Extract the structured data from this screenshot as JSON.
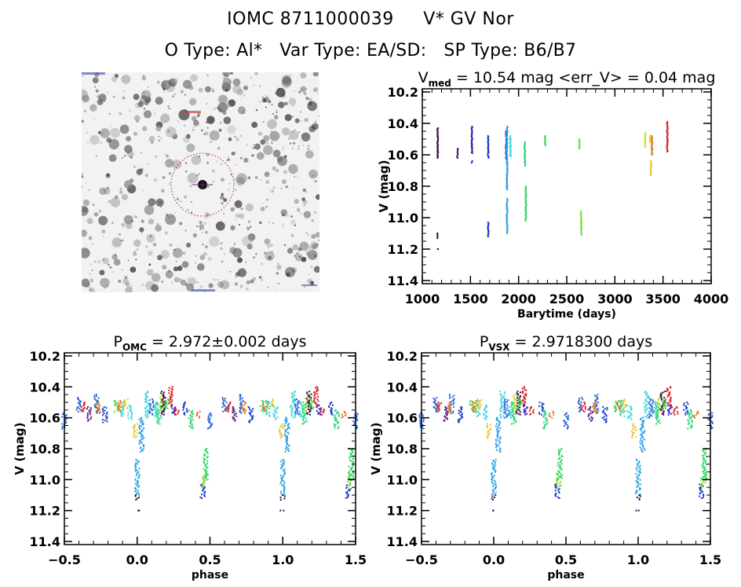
{
  "header": {
    "line1": [
      "IOMC 8711000039",
      "V* GV Nor"
    ],
    "line2": [
      "O Type: Al*",
      "Var Type: EA/SD:",
      "SP Type: B6/B7"
    ]
  },
  "image": {
    "alt": "Star field image centred on target",
    "description": "grayscale DSS-style star field, target circled in red with crosshair"
  },
  "chart_data": [
    {
      "id": "lightcurve",
      "type": "scatter",
      "title_main": "V",
      "title_sub": "med",
      "title_rest": " = 10.54 mag <err_V> = 0.04 mag",
      "xlabel": "Barytime (days)",
      "ylabel": "V (mag)",
      "xlim": [
        1000,
        4000
      ],
      "ylim": [
        11.42,
        10.18
      ],
      "y_inverted": true,
      "xticks": [
        1000,
        1500,
        2000,
        2500,
        3000,
        3500,
        4000
      ],
      "xtick_labels": [
        "1000",
        "1500",
        "2000",
        "2500",
        "3000",
        "3500",
        "4000"
      ],
      "yticks": [
        10.2,
        10.4,
        10.6,
        10.8,
        11.0,
        11.2,
        11.4
      ],
      "ytick_labels": [
        "10.2",
        "10.4",
        "10.6",
        "10.8",
        "11.0",
        "11.2",
        "11.4"
      ],
      "x_minor_step": 100,
      "y_minor_step": 0.05,
      "grid": false,
      "clusters": [
        {
          "t": 1160,
          "vmin": 10.43,
          "vmax": 10.62,
          "color": "#3b0f4f"
        },
        {
          "t": 1160,
          "vmin": 11.1,
          "vmax": 11.13,
          "color": "#3b0f4f"
        },
        {
          "t": 1160,
          "vmin": 11.2,
          "vmax": 11.2,
          "color": "#3b0f4f"
        },
        {
          "t": 1365,
          "vmin": 10.56,
          "vmax": 10.62,
          "color": "#5a1a7a"
        },
        {
          "t": 1515,
          "vmin": 10.42,
          "vmax": 10.59,
          "color": "#2c1fbf"
        },
        {
          "t": 1515,
          "vmin": 10.64,
          "vmax": 10.65,
          "color": "#2c1fbf"
        },
        {
          "t": 1685,
          "vmin": 10.48,
          "vmax": 10.62,
          "color": "#1a3cc8"
        },
        {
          "t": 1685,
          "vmin": 11.03,
          "vmax": 11.12,
          "color": "#1a3cc8"
        },
        {
          "t": 1870,
          "vmin": 10.45,
          "vmax": 10.63,
          "color": "#1e64d8"
        },
        {
          "t": 1880,
          "vmin": 10.42,
          "vmax": 10.82,
          "color": "#2a9ae6"
        },
        {
          "t": 1880,
          "vmin": 10.88,
          "vmax": 11.1,
          "color": "#2aa8e0"
        },
        {
          "t": 1915,
          "vmin": 10.48,
          "vmax": 10.61,
          "color": "#3ed6c8"
        },
        {
          "t": 2065,
          "vmin": 10.52,
          "vmax": 10.67,
          "color": "#2ed67a"
        },
        {
          "t": 2075,
          "vmin": 10.8,
          "vmax": 11.02,
          "color": "#2ed860"
        },
        {
          "t": 2275,
          "vmin": 10.48,
          "vmax": 10.54,
          "color": "#44d64a"
        },
        {
          "t": 2630,
          "vmin": 10.5,
          "vmax": 10.56,
          "color": "#66dc3a"
        },
        {
          "t": 2650,
          "vmin": 10.96,
          "vmax": 11.11,
          "color": "#7ce03a"
        },
        {
          "t": 3315,
          "vmin": 10.46,
          "vmax": 10.55,
          "color": "#c8e030"
        },
        {
          "t": 3365,
          "vmin": 10.48,
          "vmax": 10.52,
          "color": "#f0d020"
        },
        {
          "t": 3375,
          "vmin": 10.64,
          "vmax": 10.73,
          "color": "#e8c838"
        },
        {
          "t": 3385,
          "vmin": 10.48,
          "vmax": 10.6,
          "color": "#e07820"
        },
        {
          "t": 3545,
          "vmin": 10.39,
          "vmax": 10.58,
          "color": "#dc2020"
        }
      ]
    },
    {
      "id": "phase-omc",
      "type": "scatter",
      "title_main": "P",
      "title_sub": "OMC",
      "title_rest": " = 2.972±0.002 days",
      "xlabel": "phase",
      "ylabel": "V (mag)",
      "xlim": [
        -0.5,
        1.5
      ],
      "ylim": [
        11.42,
        10.18
      ],
      "y_inverted": true,
      "xticks": [
        -0.5,
        0.0,
        0.5,
        1.0,
        1.5
      ],
      "xtick_labels": [
        "−0.5",
        "0.0",
        "0.5",
        "1.0",
        "1.5"
      ],
      "yticks": [
        10.2,
        10.4,
        10.6,
        10.8,
        11.0,
        11.2,
        11.4
      ],
      "ytick_labels": [
        "10.2",
        "10.4",
        "10.6",
        "10.8",
        "11.0",
        "11.2",
        "11.4"
      ],
      "x_minor_step": 0.1,
      "y_minor_step": 0.05,
      "grid": false,
      "period_days": 2.972,
      "period_err_days": 0.002,
      "folded_clusters": [
        {
          "p": -0.4,
          "vmin": 10.47,
          "vmax": 10.56,
          "color": "#1e64d8"
        },
        {
          "p": -0.37,
          "vmin": 10.5,
          "vmax": 10.56,
          "color": "#dc2020"
        },
        {
          "p": -0.33,
          "vmin": 10.53,
          "vmax": 10.62,
          "color": "#5a1a7a"
        },
        {
          "p": -0.28,
          "vmin": 10.45,
          "vmax": 10.57,
          "color": "#2c6ad8"
        },
        {
          "p": -0.27,
          "vmin": 10.5,
          "vmax": 10.57,
          "color": "#e07820"
        },
        {
          "p": -0.22,
          "vmin": 10.53,
          "vmax": 10.63,
          "color": "#1a3cc8"
        },
        {
          "p": -0.14,
          "vmin": 10.49,
          "vmax": 10.56,
          "color": "#44d64a"
        },
        {
          "p": -0.12,
          "vmin": 10.49,
          "vmax": 10.56,
          "color": "#e07820"
        },
        {
          "p": -0.1,
          "vmin": 10.49,
          "vmax": 10.59,
          "color": "#3ed6c8"
        },
        {
          "p": -0.08,
          "vmin": 10.48,
          "vmax": 10.54,
          "color": "#f0d020"
        },
        {
          "p": -0.05,
          "vmin": 10.52,
          "vmax": 10.61,
          "color": "#3ed6e0"
        },
        {
          "p": -0.01,
          "vmin": 10.64,
          "vmax": 10.73,
          "color": "#e8c838"
        },
        {
          "p": 0.0,
          "vmin": 10.87,
          "vmax": 11.1,
          "color": "#2aa8e0"
        },
        {
          "p": 0.0,
          "vmin": 11.1,
          "vmax": 11.13,
          "color": "#3b0f4f"
        },
        {
          "p": 0.0,
          "vmin": 11.2,
          "vmax": 11.2,
          "color": "#3b0f4f"
        },
        {
          "p": 0.03,
          "vmin": 10.6,
          "vmax": 10.82,
          "color": "#2a9ae6"
        },
        {
          "p": 0.07,
          "vmin": 10.43,
          "vmax": 10.6,
          "color": "#3ed6e0"
        },
        {
          "p": 0.1,
          "vmin": 10.48,
          "vmax": 10.58,
          "color": "#1e64d8"
        },
        {
          "p": 0.13,
          "vmin": 10.5,
          "vmax": 10.6,
          "color": "#3ed6c8"
        },
        {
          "p": 0.15,
          "vmin": 10.5,
          "vmax": 10.64,
          "color": "#2ed67a"
        },
        {
          "p": 0.17,
          "vmin": 10.45,
          "vmax": 10.56,
          "color": "#c8e030"
        },
        {
          "p": 0.18,
          "vmin": 10.43,
          "vmax": 10.58,
          "color": "#3b0f4f"
        },
        {
          "p": 0.2,
          "vmin": 10.48,
          "vmax": 10.54,
          "color": "#44d64a"
        },
        {
          "p": 0.23,
          "vmin": 10.4,
          "vmax": 10.52,
          "color": "#dc2020"
        },
        {
          "p": 0.25,
          "vmin": 10.52,
          "vmax": 10.58,
          "color": "#2c1fbf"
        },
        {
          "p": 0.27,
          "vmin": 10.54,
          "vmax": 10.58,
          "color": "#dc2020"
        },
        {
          "p": 0.33,
          "vmin": 10.5,
          "vmax": 10.58,
          "color": "#1a3cc8"
        },
        {
          "p": 0.37,
          "vmin": 10.55,
          "vmax": 10.67,
          "color": "#2ed67a"
        },
        {
          "p": 0.42,
          "vmin": 10.56,
          "vmax": 10.6,
          "color": "#e07820"
        },
        {
          "p": 0.45,
          "vmin": 11.03,
          "vmax": 11.12,
          "color": "#1a3cc8"
        },
        {
          "p": 0.46,
          "vmin": 10.96,
          "vmax": 11.05,
          "color": "#7ce03a"
        },
        {
          "p": 0.47,
          "vmin": 10.8,
          "vmax": 11.0,
          "color": "#2ed860"
        },
        {
          "p": 0.5,
          "vmin": 10.57,
          "vmax": 10.67,
          "color": "#1e64d8"
        }
      ]
    },
    {
      "id": "phase-vsx",
      "type": "scatter",
      "title_main": "P",
      "title_sub": "VSX",
      "title_rest": " = 2.9718300 days",
      "xlabel": "phase",
      "ylabel": "V (mag)",
      "xlim": [
        -0.5,
        1.5
      ],
      "ylim": [
        11.42,
        10.18
      ],
      "y_inverted": true,
      "xticks": [
        -0.5,
        0.0,
        0.5,
        1.0,
        1.5
      ],
      "xtick_labels": [
        "−0.5",
        "0.0",
        "0.5",
        "1.0",
        "1.5"
      ],
      "yticks": [
        10.2,
        10.4,
        10.6,
        10.8,
        11.0,
        11.2,
        11.4
      ],
      "ytick_labels": [
        "10.2",
        "10.4",
        "10.6",
        "10.8",
        "11.0",
        "11.2",
        "11.4"
      ],
      "x_minor_step": 0.1,
      "y_minor_step": 0.05,
      "grid": false,
      "period_days": 2.97183,
      "folded_clusters": [
        {
          "p": -0.4,
          "vmin": 10.47,
          "vmax": 10.56,
          "color": "#1e64d8"
        },
        {
          "p": -0.38,
          "vmin": 10.5,
          "vmax": 10.56,
          "color": "#dc2020"
        },
        {
          "p": -0.33,
          "vmin": 10.53,
          "vmax": 10.62,
          "color": "#5a1a7a"
        },
        {
          "p": -0.29,
          "vmin": 10.45,
          "vmax": 10.57,
          "color": "#2c6ad8"
        },
        {
          "p": -0.3,
          "vmin": 10.5,
          "vmax": 10.57,
          "color": "#e07820"
        },
        {
          "p": -0.23,
          "vmin": 10.53,
          "vmax": 10.63,
          "color": "#1a3cc8"
        },
        {
          "p": -0.15,
          "vmin": 10.49,
          "vmax": 10.56,
          "color": "#44d64a"
        },
        {
          "p": -0.13,
          "vmin": 10.49,
          "vmax": 10.56,
          "color": "#e07820"
        },
        {
          "p": -0.11,
          "vmin": 10.49,
          "vmax": 10.59,
          "color": "#3ed6c8"
        },
        {
          "p": -0.1,
          "vmin": 10.48,
          "vmax": 10.54,
          "color": "#f0d020"
        },
        {
          "p": -0.06,
          "vmin": 10.52,
          "vmax": 10.61,
          "color": "#3ed6e0"
        },
        {
          "p": -0.03,
          "vmin": 10.64,
          "vmax": 10.73,
          "color": "#e8c838"
        },
        {
          "p": 0.0,
          "vmin": 10.87,
          "vmax": 11.1,
          "color": "#2aa8e0"
        },
        {
          "p": 0.0,
          "vmin": 11.1,
          "vmax": 11.13,
          "color": "#3b0f4f"
        },
        {
          "p": 0.0,
          "vmin": 11.2,
          "vmax": 11.2,
          "color": "#3b0f4f"
        },
        {
          "p": 0.03,
          "vmin": 10.6,
          "vmax": 10.82,
          "color": "#2a9ae6"
        },
        {
          "p": 0.06,
          "vmin": 10.43,
          "vmax": 10.6,
          "color": "#3ed6e0"
        },
        {
          "p": 0.09,
          "vmin": 10.48,
          "vmax": 10.6,
          "color": "#1e64d8"
        },
        {
          "p": 0.12,
          "vmin": 10.5,
          "vmax": 10.6,
          "color": "#3ed6c8"
        },
        {
          "p": 0.14,
          "vmin": 10.5,
          "vmax": 10.64,
          "color": "#2ed67a"
        },
        {
          "p": 0.15,
          "vmin": 10.45,
          "vmax": 10.56,
          "color": "#c8e030"
        },
        {
          "p": 0.17,
          "vmin": 10.43,
          "vmax": 10.58,
          "color": "#3b0f4f"
        },
        {
          "p": 0.18,
          "vmin": 10.48,
          "vmax": 10.54,
          "color": "#44d64a"
        },
        {
          "p": 0.21,
          "vmin": 10.4,
          "vmax": 10.52,
          "color": "#dc2020"
        },
        {
          "p": 0.22,
          "vmin": 10.52,
          "vmax": 10.58,
          "color": "#2c1fbf"
        },
        {
          "p": 0.26,
          "vmin": 10.53,
          "vmax": 10.58,
          "color": "#dc2020"
        },
        {
          "p": 0.33,
          "vmin": 10.5,
          "vmax": 10.58,
          "color": "#1a3cc8"
        },
        {
          "p": 0.36,
          "vmin": 10.55,
          "vmax": 10.67,
          "color": "#2ed67a"
        },
        {
          "p": 0.4,
          "vmin": 10.56,
          "vmax": 10.6,
          "color": "#e07820"
        },
        {
          "p": 0.44,
          "vmin": 11.03,
          "vmax": 11.12,
          "color": "#1a3cc8"
        },
        {
          "p": 0.45,
          "vmin": 10.96,
          "vmax": 11.05,
          "color": "#7ce03a"
        },
        {
          "p": 0.46,
          "vmin": 10.8,
          "vmax": 11.0,
          "color": "#2ed860"
        },
        {
          "p": 0.5,
          "vmin": 10.57,
          "vmax": 10.67,
          "color": "#1e64d8"
        }
      ]
    }
  ]
}
